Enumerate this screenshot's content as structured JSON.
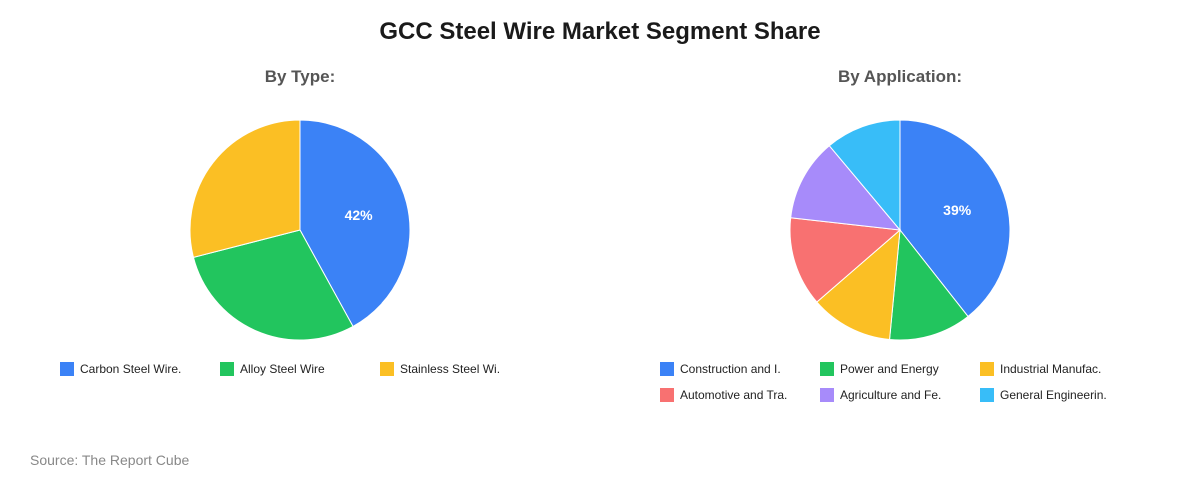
{
  "title": "GCC Steel Wire Market Segment Share",
  "source": "Source: The Report Cube",
  "chart_data": [
    {
      "type": "pie",
      "subtitle": "By Type:",
      "slices": [
        {
          "label": "Carbon Steel Wire.",
          "value": 42,
          "color": "#3b82f6",
          "data_label": "42%"
        },
        {
          "label": "Alloy Steel Wire",
          "value": 29,
          "color": "#22c55e"
        },
        {
          "label": "Stainless Steel Wi.",
          "value": 29,
          "color": "#fbbf24"
        }
      ]
    },
    {
      "type": "pie",
      "subtitle": "By Application:",
      "slices": [
        {
          "label": "Construction and I.",
          "value": 39,
          "color": "#3b82f6",
          "data_label": "39%"
        },
        {
          "label": "Power and Energy",
          "value": 12,
          "color": "#22c55e"
        },
        {
          "label": "Industrial Manufac.",
          "value": 12,
          "color": "#fbbf24"
        },
        {
          "label": "Automotive and Tra.",
          "value": 13,
          "color": "#f87171"
        },
        {
          "label": "Agriculture and Fe.",
          "value": 12,
          "color": "#a78bfa"
        },
        {
          "label": "General Engineerin.",
          "value": 11,
          "color": "#38bdf8"
        }
      ]
    }
  ]
}
